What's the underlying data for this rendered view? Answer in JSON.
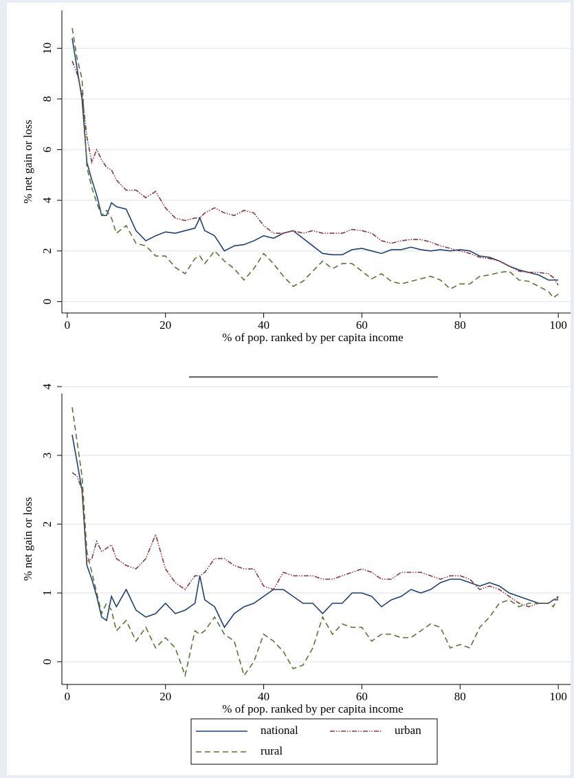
{
  "chart_data": [
    {
      "type": "line",
      "ylabel": "% net gain or loss",
      "xlabel": "% of pop. ranked by per capita income",
      "x": [
        1,
        2,
        3,
        4,
        5,
        6,
        7,
        8,
        9,
        10,
        12,
        14,
        16,
        18,
        20,
        22,
        24,
        26,
        27,
        28,
        30,
        32,
        34,
        36,
        38,
        40,
        42,
        44,
        46,
        48,
        50,
        52,
        54,
        56,
        58,
        60,
        62,
        64,
        66,
        68,
        70,
        72,
        74,
        76,
        78,
        80,
        82,
        84,
        86,
        88,
        90,
        92,
        94,
        96,
        98,
        99,
        100
      ],
      "xlim": [
        -1.1,
        102.5
      ],
      "xticks": [
        0,
        20,
        40,
        60,
        80,
        100
      ],
      "ylim": [
        -0.45,
        11.5
      ],
      "yticks": [
        0,
        2,
        4,
        6,
        8,
        10
      ],
      "grid": true,
      "series": [
        {
          "name": "national",
          "color": "#1c3f76",
          "values": [
            10.4,
            9.2,
            8.0,
            5.5,
            4.8,
            4.2,
            3.4,
            3.4,
            3.9,
            3.75,
            3.65,
            2.8,
            2.4,
            2.6,
            2.75,
            2.7,
            2.8,
            2.9,
            3.3,
            2.8,
            2.6,
            2.0,
            2.2,
            2.25,
            2.4,
            2.6,
            2.5,
            2.7,
            2.8,
            2.5,
            2.2,
            1.9,
            1.85,
            1.85,
            2.05,
            2.1,
            2.0,
            1.9,
            2.05,
            2.05,
            2.15,
            2.05,
            2.0,
            2.05,
            2.0,
            2.05,
            2.0,
            1.8,
            1.75,
            1.6,
            1.4,
            1.25,
            1.15,
            1.05,
            0.85,
            0.85,
            0.85
          ]
        },
        {
          "name": "urban",
          "color": "#8e343b",
          "values": [
            9.5,
            9.0,
            8.2,
            6.5,
            5.5,
            6.0,
            5.6,
            5.3,
            5.2,
            4.8,
            4.4,
            4.4,
            4.1,
            4.35,
            3.7,
            3.3,
            3.2,
            3.3,
            3.3,
            3.5,
            3.7,
            3.5,
            3.4,
            3.6,
            3.5,
            3.0,
            2.7,
            2.7,
            2.8,
            2.7,
            2.8,
            2.7,
            2.7,
            2.7,
            2.85,
            2.8,
            2.7,
            2.4,
            2.3,
            2.4,
            2.45,
            2.45,
            2.35,
            2.2,
            2.1,
            2.0,
            1.9,
            1.75,
            1.7,
            1.6,
            1.4,
            1.2,
            1.15,
            1.15,
            1.1,
            0.95,
            0.65
          ]
        },
        {
          "name": "rural",
          "color": "#55752f",
          "values": [
            10.8,
            9.6,
            8.8,
            5.3,
            4.5,
            3.9,
            3.4,
            3.6,
            3.3,
            2.7,
            3.0,
            2.3,
            2.2,
            1.8,
            1.8,
            1.35,
            1.1,
            1.7,
            1.8,
            1.5,
            2.0,
            1.6,
            1.3,
            0.85,
            1.3,
            1.9,
            1.5,
            1.0,
            0.6,
            0.8,
            1.2,
            1.6,
            1.3,
            1.5,
            1.5,
            1.2,
            0.9,
            1.1,
            0.8,
            0.7,
            0.8,
            0.9,
            1.0,
            0.85,
            0.5,
            0.7,
            0.7,
            1.0,
            1.05,
            1.15,
            1.2,
            0.85,
            0.8,
            0.6,
            0.4,
            0.15,
            0.3
          ]
        }
      ]
    },
    {
      "type": "line",
      "ylabel": "% net gain or loss",
      "xlabel": "% of pop. ranked by per capita income",
      "x": [
        1,
        2,
        3,
        4,
        5,
        6,
        7,
        8,
        9,
        10,
        12,
        14,
        16,
        18,
        20,
        22,
        24,
        26,
        27,
        28,
        30,
        32,
        34,
        36,
        38,
        40,
        42,
        44,
        46,
        48,
        50,
        52,
        54,
        56,
        58,
        60,
        62,
        64,
        66,
        68,
        70,
        72,
        74,
        76,
        78,
        80,
        82,
        84,
        86,
        88,
        90,
        92,
        94,
        96,
        98,
        99,
        100
      ],
      "xlim": [
        -1.1,
        102.5
      ],
      "xticks": [
        0,
        20,
        40,
        60,
        80,
        100
      ],
      "ylim": [
        -0.33,
        3.9
      ],
      "yticks": [
        0,
        1,
        2,
        3,
        4
      ],
      "grid": true,
      "series": [
        {
          "name": "national",
          "color": "#1c3f76",
          "values": [
            3.3,
            2.9,
            2.5,
            1.4,
            1.2,
            0.95,
            0.65,
            0.6,
            0.95,
            0.8,
            1.05,
            0.75,
            0.65,
            0.7,
            0.85,
            0.7,
            0.75,
            0.85,
            1.25,
            0.9,
            0.8,
            0.5,
            0.7,
            0.8,
            0.85,
            0.95,
            1.05,
            1.05,
            0.95,
            0.85,
            0.85,
            0.7,
            0.85,
            0.85,
            1.0,
            1.0,
            0.95,
            0.8,
            0.9,
            0.95,
            1.05,
            1.0,
            1.05,
            1.15,
            1.2,
            1.2,
            1.15,
            1.1,
            1.15,
            1.1,
            1.0,
            0.95,
            0.9,
            0.85,
            0.85,
            0.9,
            0.9
          ]
        },
        {
          "name": "urban",
          "color": "#8e343b",
          "values": [
            2.75,
            2.7,
            2.5,
            1.45,
            1.5,
            1.75,
            1.6,
            1.65,
            1.7,
            1.5,
            1.4,
            1.35,
            1.5,
            1.85,
            1.35,
            1.15,
            1.05,
            1.25,
            1.25,
            1.3,
            1.5,
            1.5,
            1.4,
            1.35,
            1.35,
            1.1,
            1.05,
            1.3,
            1.25,
            1.25,
            1.25,
            1.2,
            1.2,
            1.25,
            1.3,
            1.35,
            1.3,
            1.2,
            1.2,
            1.3,
            1.3,
            1.3,
            1.25,
            1.2,
            1.25,
            1.25,
            1.2,
            1.05,
            1.1,
            1.05,
            0.95,
            0.85,
            0.8,
            0.85,
            0.85,
            0.9,
            0.95
          ]
        },
        {
          "name": "rural",
          "color": "#55752f",
          "values": [
            3.7,
            3.2,
            2.7,
            1.6,
            1.3,
            1.0,
            0.7,
            0.85,
            0.75,
            0.45,
            0.6,
            0.3,
            0.5,
            0.2,
            0.35,
            0.2,
            -0.2,
            0.45,
            0.4,
            0.45,
            0.65,
            0.4,
            0.3,
            -0.2,
            0.0,
            0.4,
            0.3,
            0.15,
            -0.1,
            -0.05,
            0.2,
            0.65,
            0.4,
            0.55,
            0.5,
            0.5,
            0.3,
            0.4,
            0.4,
            0.35,
            0.35,
            0.45,
            0.55,
            0.5,
            0.2,
            0.25,
            0.2,
            0.5,
            0.65,
            0.85,
            0.9,
            0.8,
            0.85,
            0.85,
            0.85,
            0.8,
            0.95
          ]
        }
      ]
    }
  ]
}
